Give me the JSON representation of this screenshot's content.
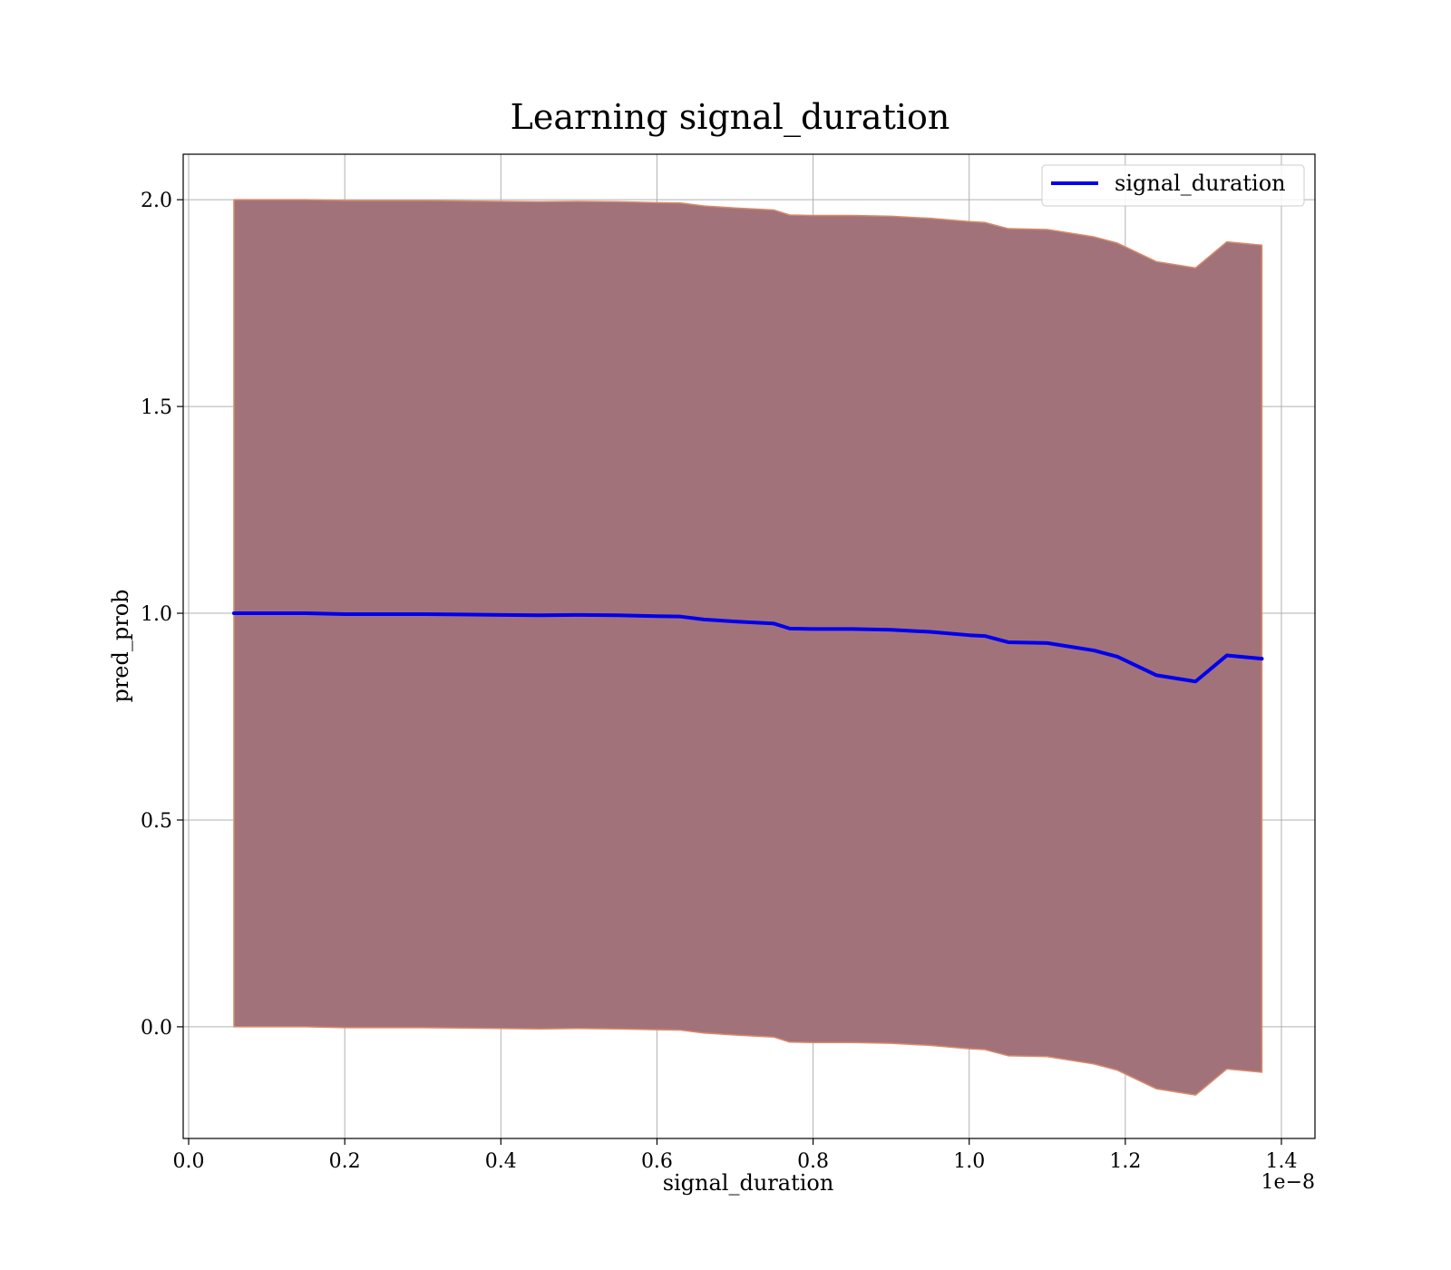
{
  "chart_data": {
    "type": "line",
    "title": "Learning signal_duration",
    "xlabel": "signal_duration",
    "ylabel": "pred_prob",
    "x_offset_label": "1e−8",
    "xlim": [
      -0.007,
      1.443
    ],
    "ylim": [
      -0.27,
      2.11
    ],
    "x_ticks": [
      0.0,
      0.2,
      0.4,
      0.6,
      0.8,
      1.0,
      1.2,
      1.4
    ],
    "x_tick_labels": [
      "0.0",
      "0.2",
      "0.4",
      "0.6",
      "0.8",
      "1.0",
      "1.2",
      "1.4"
    ],
    "y_ticks": [
      0.0,
      0.5,
      1.0,
      1.5,
      2.0
    ],
    "y_tick_labels": [
      "0.0",
      "0.5",
      "1.0",
      "1.5",
      "2.0"
    ],
    "grid": true,
    "legend": {
      "placement": "upper-right",
      "entries": [
        "signal_duration"
      ]
    },
    "colors": {
      "line": "#0000ee",
      "band_fill": "#a2727a",
      "band_edge": "#d88b6a"
    },
    "series": [
      {
        "name": "signal_duration",
        "x": [
          0.058,
          0.1,
          0.15,
          0.2,
          0.25,
          0.3,
          0.35,
          0.4,
          0.45,
          0.5,
          0.55,
          0.6,
          0.63,
          0.66,
          0.7,
          0.75,
          0.77,
          0.8,
          0.85,
          0.9,
          0.95,
          1.0,
          1.02,
          1.05,
          1.1,
          1.16,
          1.19,
          1.24,
          1.29,
          1.33,
          1.375
        ],
        "y": [
          1.0,
          1.0,
          1.0,
          0.998,
          0.998,
          0.998,
          0.997,
          0.996,
          0.995,
          0.996,
          0.995,
          0.993,
          0.992,
          0.985,
          0.98,
          0.975,
          0.963,
          0.962,
          0.962,
          0.96,
          0.955,
          0.947,
          0.945,
          0.93,
          0.928,
          0.91,
          0.895,
          0.85,
          0.835,
          0.898,
          0.89
        ]
      }
    ],
    "band": {
      "x": [
        0.058,
        0.1,
        0.15,
        0.2,
        0.25,
        0.3,
        0.35,
        0.4,
        0.45,
        0.5,
        0.55,
        0.6,
        0.63,
        0.66,
        0.7,
        0.75,
        0.77,
        0.8,
        0.85,
        0.9,
        0.95,
        1.0,
        1.02,
        1.05,
        1.1,
        1.16,
        1.19,
        1.24,
        1.29,
        1.33,
        1.375
      ],
      "upper": [
        2.0,
        2.0,
        2.0,
        1.998,
        1.998,
        1.998,
        1.997,
        1.996,
        1.995,
        1.996,
        1.995,
        1.993,
        1.992,
        1.985,
        1.98,
        1.975,
        1.963,
        1.962,
        1.962,
        1.96,
        1.955,
        1.947,
        1.945,
        1.93,
        1.928,
        1.91,
        1.895,
        1.85,
        1.835,
        1.898,
        1.89
      ],
      "lower": [
        0.0,
        0.0,
        0.0,
        -0.002,
        -0.002,
        -0.002,
        -0.003,
        -0.004,
        -0.005,
        -0.004,
        -0.005,
        -0.007,
        -0.008,
        -0.015,
        -0.02,
        -0.025,
        -0.037,
        -0.038,
        -0.038,
        -0.04,
        -0.045,
        -0.053,
        -0.055,
        -0.07,
        -0.072,
        -0.09,
        -0.105,
        -0.15,
        -0.165,
        -0.102,
        -0.11
      ]
    }
  }
}
